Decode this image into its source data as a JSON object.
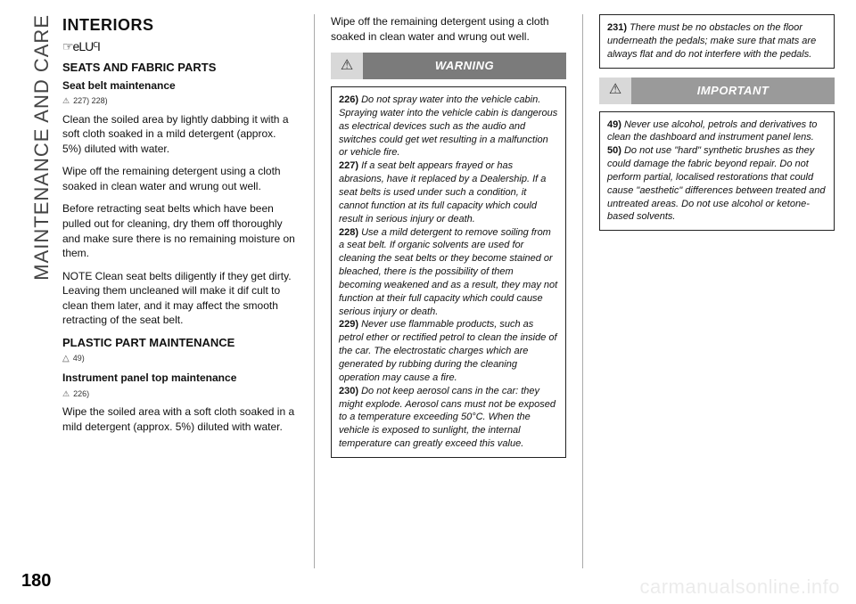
{
  "sidebar": {
    "label": "MAINTENANCE AND CARE"
  },
  "pageNumber": "180",
  "watermark": "carmanualsonline.info",
  "col1": {
    "h1": "INTERIORS",
    "handIcon": "☞eLUꟲI",
    "h2a": "SEATS AND FABRIC PARTS",
    "boldA": "Seat belt maintenance",
    "refA": "227) 228)",
    "p1": "Clean the soiled area by lightly dabbing it with a soft cloth soaked in a mild detergent (approx. 5%) diluted with water.",
    "p2": "Wipe off the remaining detergent using a cloth soaked in clean water and wrung out well.",
    "p3": "Before retracting seat belts which have been pulled out for cleaning, dry them off thoroughly and make sure there is no remaining moisture on them.",
    "p4": "NOTE Clean seat belts diligently if they get dirty. Leaving them uncleaned will make it dif cult to clean them later, and it may affect the smooth retracting of the seat belt.",
    "h2b": "PLASTIC PART MAINTENANCE",
    "refB": "49)",
    "boldB": "Instrument panel top maintenance",
    "refC": "226)",
    "p5": "Wipe the soiled area with a soft cloth soaked in a mild detergent (approx. 5%) diluted with water."
  },
  "col2": {
    "p1": "Wipe off the remaining detergent using a cloth soaked in clean water and wrung out well.",
    "warnLabel": "WARNING",
    "w226n": "226)",
    "w226": " Do not spray water into the vehicle cabin. Spraying water into the vehicle cabin is dangerous as electrical devices such as the audio and switches could get wet resulting in a malfunction or vehicle fire.",
    "w227n": "227)",
    "w227": " If a seat belt appears frayed or has abrasions, have it replaced by a Dealership. If a seat belts is used under such a condition, it cannot function at its full capacity which could result in serious injury or death.",
    "w228n": "228)",
    "w228": " Use a mild detergent to remove soiling from a seat belt. If organic solvents are used for cleaning the seat belts or they become stained or bleached, there is the possibility of them becoming weakened and as a result, they may not function at their full capacity which could cause serious injury or death.",
    "w229n": "229)",
    "w229": " Never use flammable products, such as petrol ether or rectified petrol to clean the inside of the car. The electrostatic charges which are generated by rubbing during the cleaning operation may cause a fire.",
    "w230n": "230)",
    "w230": " Do not keep aerosol cans in the car: they might explode. Aerosol cans must not be exposed to a temperature exceeding 50°C. When the vehicle is exposed to sunlight, the internal temperature can greatly exceed this value."
  },
  "col3": {
    "w231n": "231)",
    "w231": " There must be no obstacles on the floor underneath the pedals; make sure that mats are always flat and do not interfere with the pedals.",
    "impLabel": "IMPORTANT",
    "i49n": "49)",
    "i49": " Never use alcohol, petrols and derivatives to clean the dashboard and instrument panel lens.",
    "i50n": "50)",
    "i50": " Do not use \"hard\" synthetic brushes as they could damage the fabric beyond repair. Do not perform partial, localised restorations that could cause \"aesthetic\" differences between treated and untreated areas. Do not use alcohol or ketone-based solvents."
  }
}
